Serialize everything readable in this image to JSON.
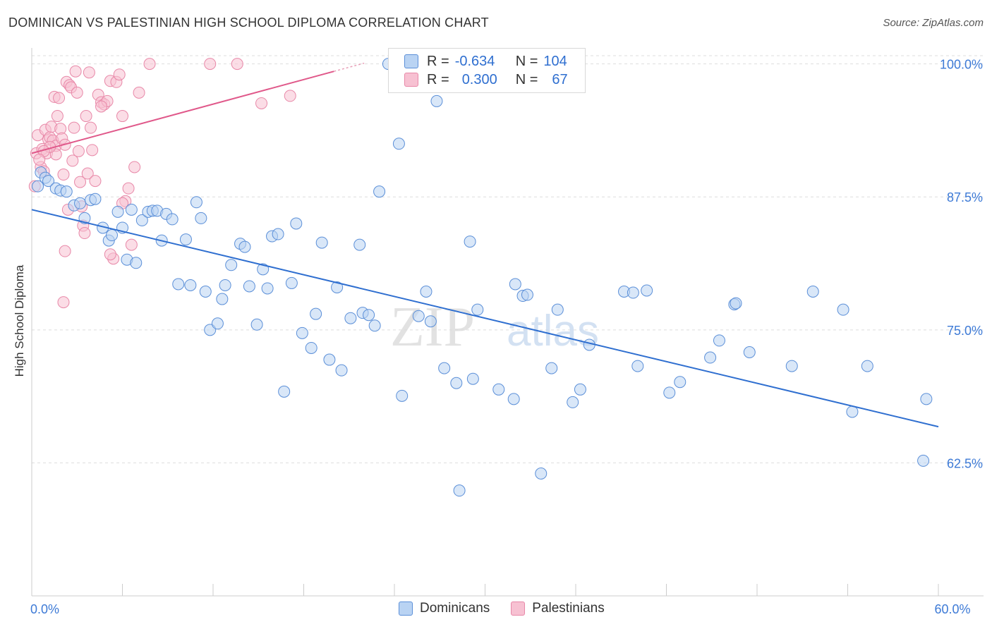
{
  "header": {
    "title": "DOMINICAN VS PALESTINIAN HIGH SCHOOL DIPLOMA CORRELATION CHART",
    "source": "Source: ZipAtlas.com"
  },
  "legend": {
    "dominicans": {
      "r_label": "R =",
      "r_value": "-0.634",
      "n_label": "N =",
      "n_value": "104"
    },
    "palestinians": {
      "r_label": "R =",
      "r_value": "0.300",
      "n_label": "N =",
      "n_value": "67"
    }
  },
  "bottom_legend": {
    "dominicans": "Dominicans",
    "palestinians": "Palestinians"
  },
  "watermark": {
    "zip": "ZIP",
    "atlas": "atlas"
  },
  "colors": {
    "dominicans_fill": "#b9d3f3",
    "dominicans_stroke": "#5b8fd8",
    "dominicans_line": "#2f6fd0",
    "palestinians_fill": "#f7c1d2",
    "palestinians_stroke": "#e888a8",
    "palestinians_line": "#e0588a",
    "tick_label": "#3d7ad6"
  },
  "chart_data": {
    "type": "scatter",
    "title": "DOMINICAN VS PALESTINIAN HIGH SCHOOL DIPLOMA CORRELATION CHART",
    "xlabel": "",
    "ylabel": "High School Diploma",
    "xlim": [
      0,
      60
    ],
    "ylim": [
      50,
      101.5
    ],
    "x_tick_labels": [
      {
        "value": 0,
        "label": "0.0%"
      },
      {
        "value": 60,
        "label": "60.0%"
      }
    ],
    "y_ticks": [
      {
        "value": 100,
        "label": "100.0%"
      },
      {
        "value": 87.5,
        "label": "87.5%"
      },
      {
        "value": 75,
        "label": "75.0%"
      },
      {
        "value": 62.5,
        "label": "62.5%"
      }
    ],
    "grid": true,
    "legend_position": "top-center",
    "series": [
      {
        "name": "Dominicans",
        "r": -0.634,
        "n": 104,
        "trend": [
          [
            0,
            86.3
          ],
          [
            60,
            65.9
          ]
        ],
        "points": [
          [
            0.4,
            88.5
          ],
          [
            0.6,
            89.8
          ],
          [
            0.9,
            89.3
          ],
          [
            1.1,
            89.0
          ],
          [
            1.6,
            88.3
          ],
          [
            1.9,
            88.1
          ],
          [
            2.3,
            88.0
          ],
          [
            2.8,
            86.7
          ],
          [
            3.2,
            86.9
          ],
          [
            3.5,
            85.5
          ],
          [
            3.9,
            87.2
          ],
          [
            4.2,
            87.3
          ],
          [
            4.7,
            84.6
          ],
          [
            5.1,
            83.4
          ],
          [
            5.3,
            83.9
          ],
          [
            5.7,
            86.1
          ],
          [
            6.0,
            84.6
          ],
          [
            6.3,
            81.6
          ],
          [
            6.6,
            86.3
          ],
          [
            6.9,
            81.3
          ],
          [
            7.3,
            85.3
          ],
          [
            7.7,
            86.1
          ],
          [
            8.0,
            86.2
          ],
          [
            8.3,
            86.2
          ],
          [
            8.6,
            83.4
          ],
          [
            8.9,
            85.9
          ],
          [
            9.3,
            85.4
          ],
          [
            9.7,
            79.3
          ],
          [
            10.2,
            83.5
          ],
          [
            10.5,
            79.2
          ],
          [
            10.9,
            87.0
          ],
          [
            11.2,
            85.5
          ],
          [
            11.5,
            78.6
          ],
          [
            11.8,
            75.0
          ],
          [
            12.3,
            75.6
          ],
          [
            12.6,
            77.9
          ],
          [
            12.8,
            79.2
          ],
          [
            13.2,
            81.1
          ],
          [
            13.8,
            83.1
          ],
          [
            14.1,
            82.8
          ],
          [
            14.4,
            79.1
          ],
          [
            14.9,
            75.5
          ],
          [
            15.3,
            80.7
          ],
          [
            15.6,
            78.9
          ],
          [
            15.9,
            83.8
          ],
          [
            16.3,
            84.0
          ],
          [
            16.7,
            69.2
          ],
          [
            17.2,
            79.4
          ],
          [
            17.5,
            85.0
          ],
          [
            17.9,
            74.7
          ],
          [
            18.5,
            73.3
          ],
          [
            18.8,
            76.5
          ],
          [
            19.2,
            83.2
          ],
          [
            19.7,
            72.2
          ],
          [
            20.2,
            79.0
          ],
          [
            20.5,
            71.2
          ],
          [
            21.1,
            76.1
          ],
          [
            21.7,
            83.0
          ],
          [
            21.9,
            76.6
          ],
          [
            22.3,
            76.4
          ],
          [
            22.7,
            75.4
          ],
          [
            23.0,
            88.0
          ],
          [
            23.6,
            100.0
          ],
          [
            24.3,
            92.5
          ],
          [
            24.5,
            68.8
          ],
          [
            25.6,
            76.3
          ],
          [
            26.1,
            78.6
          ],
          [
            26.4,
            75.8
          ],
          [
            26.8,
            96.5
          ],
          [
            27.3,
            71.4
          ],
          [
            28.1,
            70.0
          ],
          [
            28.3,
            59.9
          ],
          [
            29.0,
            83.3
          ],
          [
            29.2,
            70.4
          ],
          [
            29.5,
            76.9
          ],
          [
            30.9,
            69.4
          ],
          [
            31.9,
            68.5
          ],
          [
            32.0,
            79.3
          ],
          [
            32.5,
            78.2
          ],
          [
            32.8,
            78.3
          ],
          [
            33.7,
            61.5
          ],
          [
            34.4,
            71.4
          ],
          [
            34.8,
            76.9
          ],
          [
            35.8,
            68.2
          ],
          [
            36.3,
            69.4
          ],
          [
            36.9,
            73.6
          ],
          [
            39.2,
            78.6
          ],
          [
            40.1,
            71.6
          ],
          [
            40.7,
            78.7
          ],
          [
            42.2,
            69.1
          ],
          [
            42.9,
            70.1
          ],
          [
            44.9,
            72.4
          ],
          [
            45.5,
            74.0
          ],
          [
            46.5,
            77.4
          ],
          [
            47.5,
            72.9
          ],
          [
            50.3,
            71.6
          ],
          [
            51.7,
            78.6
          ],
          [
            53.7,
            76.9
          ],
          [
            54.3,
            67.3
          ],
          [
            55.3,
            71.6
          ],
          [
            59.2,
            68.5
          ],
          [
            39.8,
            78.5
          ],
          [
            46.6,
            77.5
          ],
          [
            59.0,
            62.7
          ]
        ]
      },
      {
        "name": "Palestinians",
        "r": 0.3,
        "n": 67,
        "trend": [
          [
            0,
            91.6
          ],
          [
            20,
            99.3
          ]
        ],
        "points": [
          [
            0.2,
            88.5
          ],
          [
            0.3,
            91.6
          ],
          [
            0.4,
            93.3
          ],
          [
            0.6,
            90.3
          ],
          [
            0.7,
            92.0
          ],
          [
            0.8,
            89.9
          ],
          [
            0.9,
            93.8
          ],
          [
            1.0,
            91.6
          ],
          [
            1.1,
            92.9
          ],
          [
            1.2,
            93.1
          ],
          [
            1.3,
            94.1
          ],
          [
            1.4,
            92.8
          ],
          [
            1.5,
            96.9
          ],
          [
            1.6,
            92.3
          ],
          [
            1.7,
            95.1
          ],
          [
            1.8,
            96.8
          ],
          [
            1.9,
            93.9
          ],
          [
            2.0,
            93.0
          ],
          [
            2.1,
            89.6
          ],
          [
            2.2,
            92.4
          ],
          [
            2.3,
            98.3
          ],
          [
            2.4,
            86.3
          ],
          [
            2.5,
            98.0
          ],
          [
            2.6,
            97.8
          ],
          [
            2.7,
            90.9
          ],
          [
            2.8,
            94.0
          ],
          [
            2.9,
            99.3
          ],
          [
            3.0,
            97.3
          ],
          [
            3.1,
            91.8
          ],
          [
            3.2,
            88.9
          ],
          [
            3.3,
            86.6
          ],
          [
            3.4,
            84.8
          ],
          [
            3.5,
            84.1
          ],
          [
            3.6,
            95.1
          ],
          [
            3.7,
            89.7
          ],
          [
            3.8,
            99.2
          ],
          [
            3.9,
            94.0
          ],
          [
            4.0,
            91.9
          ],
          [
            4.2,
            89.0
          ],
          [
            4.4,
            97.1
          ],
          [
            4.6,
            96.4
          ],
          [
            4.8,
            96.2
          ],
          [
            5.0,
            96.5
          ],
          [
            5.2,
            98.4
          ],
          [
            5.4,
            81.7
          ],
          [
            5.6,
            98.3
          ],
          [
            5.8,
            99.0
          ],
          [
            6.0,
            95.1
          ],
          [
            6.2,
            87.1
          ],
          [
            6.4,
            88.3
          ],
          [
            6.6,
            83.0
          ],
          [
            6.8,
            90.3
          ],
          [
            7.1,
            97.3
          ],
          [
            7.8,
            100.0
          ],
          [
            11.8,
            100.0
          ],
          [
            13.6,
            100.0
          ],
          [
            15.2,
            96.3
          ],
          [
            17.1,
            97.0
          ],
          [
            2.1,
            77.6
          ],
          [
            2.2,
            82.4
          ],
          [
            5.2,
            82.1
          ],
          [
            1.6,
            91.5
          ],
          [
            1.2,
            92.2
          ],
          [
            0.8,
            91.8
          ],
          [
            0.5,
            91.0
          ],
          [
            4.6,
            96.0
          ],
          [
            6.0,
            86.9
          ]
        ]
      }
    ]
  }
}
